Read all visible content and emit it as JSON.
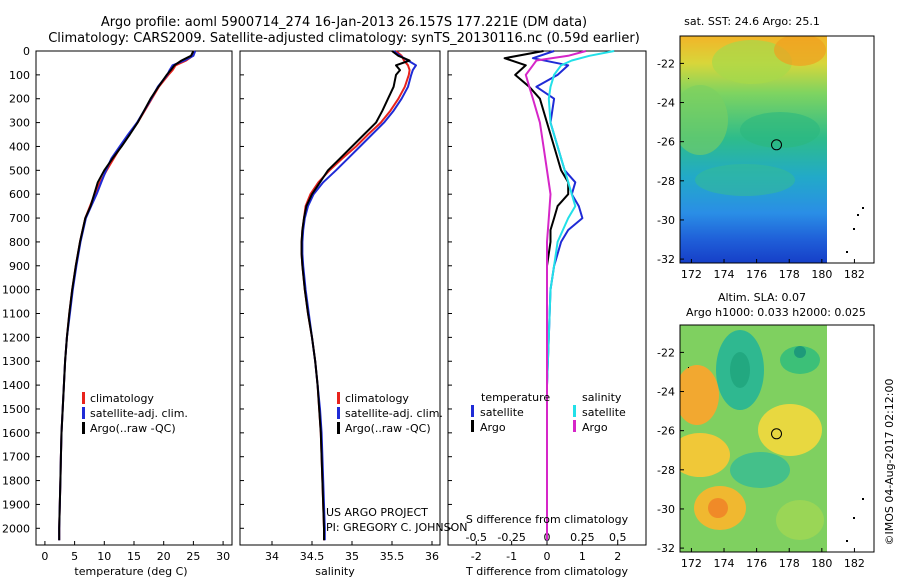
{
  "header": {
    "title_line1": "Argo profile: aoml 5900714_274 16-Jan-2013 26.157S 177.221E (DM data)",
    "title_line2": "Climatology: CARS2009. Satellite-adjusted climatology: synTS_20130116.nc (0.59d earlier)"
  },
  "footer": {
    "project_line1": "US ARGO PROJECT",
    "project_line2": "PI: GREGORY C. JOHNSON",
    "credit": "©IMOS 04-Aug-2017 02:12:00"
  },
  "colors": {
    "climatology": "#e8221c",
    "satellite": "#1f2bd6",
    "argo": "#000000",
    "salinity_satellite": "#22e0e8",
    "salinity_argo": "#d626c8"
  },
  "depth_axis": {
    "ticks": [
      0,
      100,
      200,
      300,
      400,
      500,
      600,
      700,
      800,
      900,
      1000,
      1100,
      1200,
      1300,
      1400,
      1500,
      1600,
      1700,
      1800,
      1900,
      2000
    ],
    "range": [
      0,
      2070
    ]
  },
  "chart_data": [
    {
      "type": "line",
      "id": "temperature",
      "xlabel": "temperature (deg C)",
      "xlim": [
        -1.5,
        31.5
      ],
      "xticks": [
        0,
        5,
        10,
        15,
        20,
        25,
        30
      ],
      "legend": [
        "climatology",
        "satellite-adj. clim.",
        "Argo(..raw -QC)"
      ],
      "series": [
        {
          "name": "climatology",
          "depth": [
            0,
            20,
            40,
            60,
            80,
            100,
            150,
            200,
            250,
            300,
            350,
            400,
            450,
            500,
            550,
            600,
            650,
            700,
            800,
            900,
            1000,
            1100,
            1200,
            1300,
            1400,
            1500,
            1600,
            1700,
            1800,
            1900,
            2000,
            2050
          ],
          "values": [
            25.1,
            24.9,
            23.8,
            22.0,
            21.5,
            20.8,
            19.2,
            18.0,
            16.8,
            15.6,
            14.2,
            12.8,
            11.6,
            10.4,
            9.3,
            8.4,
            7.6,
            6.8,
            5.9,
            5.2,
            4.6,
            4.1,
            3.7,
            3.4,
            3.2,
            3.0,
            2.8,
            2.7,
            2.6,
            2.5,
            2.4,
            2.4
          ]
        },
        {
          "name": "satellite-adj. clim.",
          "depth": [
            0,
            20,
            40,
            60,
            80,
            100,
            150,
            200,
            250,
            300,
            350,
            400,
            450,
            500,
            550,
            600,
            650,
            700,
            800,
            900,
            1000,
            1100,
            1200,
            1300,
            1400,
            1500,
            1600,
            1700,
            1800,
            1900,
            2000,
            2050
          ],
          "values": [
            25.3,
            25.0,
            23.5,
            21.5,
            21.0,
            20.6,
            19.0,
            17.9,
            16.7,
            15.5,
            14.0,
            12.6,
            11.2,
            10.3,
            9.5,
            8.7,
            7.8,
            6.9,
            6.0,
            5.3,
            4.7,
            4.2,
            3.7,
            3.4,
            3.2,
            3.0,
            2.8,
            2.7,
            2.6,
            2.5,
            2.4,
            2.4
          ]
        },
        {
          "name": "Argo(..raw -QC)",
          "depth": [
            0,
            20,
            40,
            60,
            80,
            100,
            150,
            200,
            250,
            300,
            350,
            400,
            450,
            500,
            550,
            600,
            650,
            700,
            800,
            900,
            1000,
            1100,
            1200,
            1300,
            1400,
            1500,
            1600,
            1700,
            1800,
            1900,
            2000,
            2050
          ],
          "values": [
            25.0,
            24.6,
            23.0,
            21.8,
            21.2,
            20.5,
            19.1,
            17.8,
            16.7,
            15.6,
            14.3,
            12.9,
            11.4,
            10.0,
            8.9,
            8.3,
            7.7,
            6.8,
            5.9,
            5.2,
            4.6,
            4.1,
            3.7,
            3.4,
            3.2,
            3.0,
            2.8,
            2.7,
            2.6,
            2.5,
            2.4,
            2.4
          ]
        }
      ]
    },
    {
      "type": "line",
      "id": "salinity",
      "xlabel": "salinity",
      "xlim": [
        33.6,
        36.1
      ],
      "xticks": [
        34,
        34.5,
        35,
        35.5,
        36
      ],
      "legend": [
        "climatology",
        "satellite-adj. clim.",
        "Argo(..raw -QC)"
      ],
      "series": [
        {
          "name": "climatology",
          "depth": [
            0,
            20,
            40,
            60,
            80,
            100,
            150,
            200,
            250,
            300,
            350,
            400,
            450,
            500,
            550,
            600,
            650,
            700,
            750,
            800,
            850,
            900,
            1000,
            1100,
            1200,
            1300,
            1400,
            1500,
            1600,
            1700,
            1800,
            1900,
            2000,
            2050
          ],
          "values": [
            35.55,
            35.62,
            35.65,
            35.7,
            35.72,
            35.71,
            35.66,
            35.58,
            35.48,
            35.36,
            35.2,
            35.05,
            34.88,
            34.72,
            34.58,
            34.48,
            34.42,
            34.4,
            34.38,
            34.37,
            34.37,
            34.38,
            34.41,
            34.45,
            34.5,
            34.54,
            34.57,
            34.59,
            34.61,
            34.62,
            34.63,
            34.64,
            34.65,
            34.65
          ]
        },
        {
          "name": "satellite-adj. clim.",
          "depth": [
            0,
            20,
            40,
            60,
            80,
            100,
            150,
            200,
            250,
            300,
            350,
            400,
            450,
            500,
            550,
            600,
            650,
            700,
            750,
            800,
            850,
            900,
            1000,
            1100,
            1200,
            1300,
            1400,
            1500,
            1600,
            1700,
            1800,
            1900,
            2000,
            2050
          ],
          "values": [
            35.52,
            35.6,
            35.7,
            35.8,
            35.76,
            35.74,
            35.7,
            35.62,
            35.52,
            35.4,
            35.25,
            35.1,
            34.95,
            34.8,
            34.64,
            34.52,
            34.45,
            34.41,
            34.39,
            34.38,
            34.38,
            34.39,
            34.42,
            34.46,
            34.5,
            34.54,
            34.57,
            34.6,
            34.62,
            34.63,
            34.64,
            34.65,
            34.66,
            34.66
          ]
        },
        {
          "name": "Argo(..raw -QC)",
          "depth": [
            0,
            20,
            40,
            60,
            80,
            100,
            150,
            200,
            250,
            300,
            350,
            400,
            450,
            500,
            550,
            600,
            650,
            700,
            750,
            800,
            850,
            900,
            1000,
            1100,
            1200,
            1300,
            1400,
            1500,
            1600,
            1700,
            1800,
            1900,
            2000,
            2050
          ],
          "values": [
            35.5,
            35.58,
            35.72,
            35.55,
            35.6,
            35.55,
            35.52,
            35.45,
            35.38,
            35.3,
            35.15,
            35.0,
            34.85,
            34.7,
            34.6,
            34.5,
            34.43,
            34.4,
            34.38,
            34.37,
            34.37,
            34.38,
            34.41,
            34.45,
            34.5,
            34.54,
            34.57,
            34.59,
            34.61,
            34.62,
            34.63,
            34.64,
            34.65,
            34.65
          ]
        }
      ]
    },
    {
      "type": "line",
      "id": "difference",
      "xlabel": "T difference from climatology",
      "xlabel_top": "S difference from climatology",
      "xlim": [
        -2.8,
        2.8
      ],
      "xticks": [
        -2,
        -1,
        0,
        1,
        2
      ],
      "xticks_top": [
        "-0.5",
        "-0.25",
        "0",
        "0.25",
        "0.5"
      ],
      "legend": {
        "temperature_header": "temperature",
        "salinity_header": "salinity",
        "items": [
          "satellite",
          "Argo",
          "satellite",
          "Argo"
        ]
      },
      "series": [
        {
          "name": "satellite",
          "group": "temperature",
          "depth": [
            0,
            30,
            60,
            100,
            150,
            200,
            300,
            400,
            450,
            500,
            550,
            600,
            650,
            700,
            750,
            800,
            900,
            1000,
            1200,
            1400,
            1600,
            1800,
            2000,
            2050
          ],
          "values": [
            0.2,
            -0.4,
            0.6,
            0.3,
            -0.3,
            0.2,
            0.1,
            0.3,
            0.4,
            0.5,
            0.8,
            0.7,
            0.9,
            1.0,
            0.6,
            0.4,
            0.2,
            0.1,
            0.05,
            0.0,
            0.0,
            0.0,
            0.0,
            0.0
          ]
        },
        {
          "name": "Argo",
          "group": "temperature",
          "depth": [
            0,
            30,
            60,
            100,
            150,
            200,
            300,
            400,
            450,
            500,
            550,
            600,
            650,
            700,
            750,
            800,
            900,
            1000,
            1200,
            1400,
            1600,
            1800,
            2000,
            2050
          ],
          "values": [
            -0.1,
            -1.2,
            -0.6,
            -0.9,
            -0.5,
            -0.2,
            0.0,
            0.2,
            0.3,
            0.4,
            0.6,
            0.6,
            0.3,
            0.2,
            0.1,
            0.1,
            0.0,
            0.0,
            0.0,
            0.0,
            0.0,
            0.0,
            0.0,
            0.0
          ]
        },
        {
          "name": "satellite",
          "group": "salinity",
          "depth": [
            0,
            20,
            40,
            60,
            100,
            150,
            200,
            300,
            400,
            500,
            600,
            650,
            700,
            800,
            900,
            1000,
            1200,
            1400,
            1600,
            1800,
            2000,
            2050
          ],
          "values": [
            1.9,
            1.2,
            0.7,
            0.4,
            0.2,
            0.1,
            0.05,
            0.1,
            0.3,
            0.5,
            0.7,
            0.8,
            0.6,
            0.3,
            0.2,
            0.1,
            0.05,
            0.0,
            0.0,
            0.0,
            0.0,
            0.0
          ]
        },
        {
          "name": "Argo",
          "group": "salinity",
          "depth": [
            0,
            20,
            40,
            60,
            100,
            150,
            200,
            300,
            400,
            500,
            600,
            700,
            800,
            900,
            1000,
            1200,
            1400,
            1600,
            1800,
            2000,
            2050
          ],
          "values": [
            1.1,
            0.6,
            -0.3,
            -0.4,
            -0.6,
            -0.5,
            -0.4,
            -0.2,
            -0.1,
            0.0,
            0.1,
            0.05,
            0.0,
            0.0,
            0.0,
            0.0,
            0.0,
            0.0,
            0.0,
            0.0,
            0.0
          ]
        }
      ]
    },
    {
      "type": "heatmap",
      "id": "sst-map",
      "title": "sat. SST: 24.6 Argo: 25.1",
      "xlim": [
        171.3,
        183.2
      ],
      "ylim": [
        -32.2,
        -20.6
      ],
      "xticks": [
        172,
        174,
        176,
        178,
        180,
        182
      ],
      "yticks": [
        -22,
        -24,
        -26,
        -28,
        -30,
        -32
      ],
      "marker": {
        "lon": 177.22,
        "lat": -26.16
      }
    },
    {
      "type": "heatmap",
      "id": "sla-map",
      "title": "Altim. SLA: 0.07",
      "subtitle": "Argo h1000: 0.033 h2000: 0.025",
      "xlim": [
        171.3,
        183.2
      ],
      "ylim": [
        -32.2,
        -20.6
      ],
      "xticks": [
        172,
        174,
        176,
        178,
        180,
        182
      ],
      "yticks": [
        -22,
        -24,
        -26,
        -28,
        -30,
        -32
      ],
      "marker": {
        "lon": 177.22,
        "lat": -26.16
      }
    }
  ]
}
